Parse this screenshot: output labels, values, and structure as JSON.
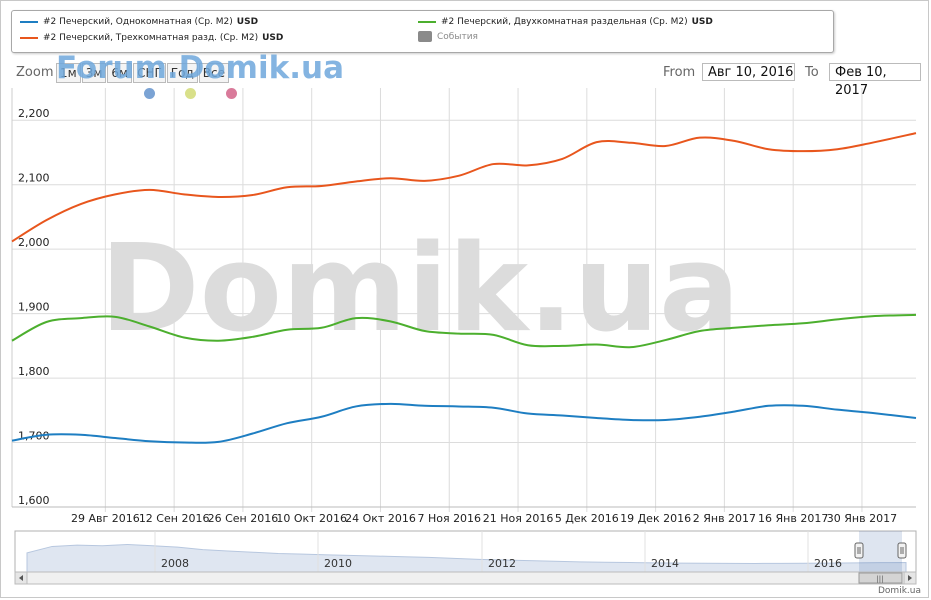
{
  "legend": {
    "items": [
      {
        "label": "#2 Печерский, Однокомнатная (Ср. М2)",
        "unit": "USD",
        "color": "#1e7ec2"
      },
      {
        "label": "#2 Печерский, Двухкомнатная раздельная (Ср. М2)",
        "unit": "USD",
        "color": "#4caf2e"
      },
      {
        "label": "#2 Печерский, Трехкомнатная разд. (Ср. М2)",
        "unit": "USD",
        "color": "#e8561d"
      }
    ],
    "events_label": "События"
  },
  "brand_watermark": "Forum.Domik.ua",
  "big_watermark": "Domik.ua",
  "footer_brand": "Domik.ua",
  "zoom": {
    "label": "Zoom",
    "buttons": [
      "1м",
      "3м",
      "6м",
      "СНГ",
      "Год",
      "Все"
    ]
  },
  "range": {
    "from_label": "From",
    "from_value": "Авг 10, 2016",
    "to_label": "To",
    "to_value": "Фев 10, 2017"
  },
  "event_dots": [
    {
      "color": "#7ba3d4"
    },
    {
      "color": "#d9e08a"
    },
    {
      "color": "#d97a9a"
    }
  ],
  "chart_data": {
    "type": "line",
    "x_start": "2016-08-10",
    "x_end": "2017-02-10",
    "ylim": [
      1600,
      2250
    ],
    "y_ticks": [
      1600,
      1700,
      1800,
      1900,
      2000,
      2100,
      2200
    ],
    "y_tick_labels": [
      "1,600",
      "1,700",
      "1,800",
      "1,900",
      "2,000",
      "2,100",
      "2,200"
    ],
    "x_ticks": [
      "2016-08-29",
      "2016-09-12",
      "2016-09-26",
      "2016-10-10",
      "2016-10-24",
      "2016-11-07",
      "2016-11-21",
      "2016-12-05",
      "2016-12-19",
      "2017-01-02",
      "2017-01-16",
      "2017-01-30"
    ],
    "x_tick_labels": [
      "29 Авг 2016",
      "12 Сен 2016",
      "26 Сен 2016",
      "10 Окт 2016",
      "24 Окт 2016",
      "7 Ноя 2016",
      "21 Ноя 2016",
      "5 Дек 2016",
      "19 Дек 2016",
      "2 Янв 2017",
      "16 Янв 2017",
      "30 Янв 2017"
    ],
    "series": [
      {
        "name": "#2 Печерский, Трехкомнатная разд. (Ср. М2)",
        "color": "#e8561d",
        "points": [
          [
            "2016-08-10",
            2012
          ],
          [
            "2016-08-17",
            2045
          ],
          [
            "2016-08-24",
            2070
          ],
          [
            "2016-08-31",
            2085
          ],
          [
            "2016-09-07",
            2092
          ],
          [
            "2016-09-14",
            2085
          ],
          [
            "2016-09-21",
            2081
          ],
          [
            "2016-09-28",
            2084
          ],
          [
            "2016-10-05",
            2096
          ],
          [
            "2016-10-12",
            2098
          ],
          [
            "2016-10-19",
            2105
          ],
          [
            "2016-10-26",
            2110
          ],
          [
            "2016-11-02",
            2106
          ],
          [
            "2016-11-09",
            2114
          ],
          [
            "2016-11-16",
            2132
          ],
          [
            "2016-11-23",
            2130
          ],
          [
            "2016-11-30",
            2140
          ],
          [
            "2016-12-07",
            2166
          ],
          [
            "2016-12-14",
            2165
          ],
          [
            "2016-12-21",
            2160
          ],
          [
            "2016-12-28",
            2173
          ],
          [
            "2017-01-04",
            2168
          ],
          [
            "2017-01-11",
            2155
          ],
          [
            "2017-01-18",
            2152
          ],
          [
            "2017-01-25",
            2155
          ],
          [
            "2017-02-01",
            2165
          ],
          [
            "2017-02-10",
            2180
          ]
        ]
      },
      {
        "name": "#2 Печерский, Двухкомнатная раздельная (Ср. М2)",
        "color": "#4caf2e",
        "points": [
          [
            "2016-08-10",
            1858
          ],
          [
            "2016-08-17",
            1887
          ],
          [
            "2016-08-24",
            1893
          ],
          [
            "2016-08-31",
            1895
          ],
          [
            "2016-09-07",
            1880
          ],
          [
            "2016-09-14",
            1863
          ],
          [
            "2016-09-21",
            1858
          ],
          [
            "2016-09-28",
            1864
          ],
          [
            "2016-10-05",
            1875
          ],
          [
            "2016-10-12",
            1878
          ],
          [
            "2016-10-19",
            1893
          ],
          [
            "2016-10-26",
            1888
          ],
          [
            "2016-11-02",
            1873
          ],
          [
            "2016-11-09",
            1869
          ],
          [
            "2016-11-16",
            1867
          ],
          [
            "2016-11-23",
            1851
          ],
          [
            "2016-11-30",
            1850
          ],
          [
            "2016-12-07",
            1852
          ],
          [
            "2016-12-14",
            1848
          ],
          [
            "2016-12-21",
            1859
          ],
          [
            "2016-12-28",
            1873
          ],
          [
            "2017-01-04",
            1878
          ],
          [
            "2017-01-11",
            1882
          ],
          [
            "2017-01-18",
            1885
          ],
          [
            "2017-01-25",
            1891
          ],
          [
            "2017-02-01",
            1896
          ],
          [
            "2017-02-10",
            1898
          ]
        ]
      },
      {
        "name": "#2 Печерский, Однокомнатная (Ср. М2)",
        "color": "#1e7ec2",
        "points": [
          [
            "2016-08-10",
            1703
          ],
          [
            "2016-08-17",
            1712
          ],
          [
            "2016-08-24",
            1712
          ],
          [
            "2016-08-31",
            1707
          ],
          [
            "2016-09-07",
            1702
          ],
          [
            "2016-09-14",
            1700
          ],
          [
            "2016-09-21",
            1701
          ],
          [
            "2016-09-28",
            1714
          ],
          [
            "2016-10-05",
            1730
          ],
          [
            "2016-10-12",
            1740
          ],
          [
            "2016-10-19",
            1756
          ],
          [
            "2016-10-26",
            1760
          ],
          [
            "2016-11-02",
            1757
          ],
          [
            "2016-11-09",
            1756
          ],
          [
            "2016-11-16",
            1754
          ],
          [
            "2016-11-23",
            1745
          ],
          [
            "2016-11-30",
            1742
          ],
          [
            "2016-12-07",
            1738
          ],
          [
            "2016-12-14",
            1735
          ],
          [
            "2016-12-21",
            1735
          ],
          [
            "2016-12-28",
            1740
          ],
          [
            "2017-01-04",
            1748
          ],
          [
            "2017-01-11",
            1757
          ],
          [
            "2017-01-18",
            1757
          ],
          [
            "2017-01-25",
            1751
          ],
          [
            "2017-02-01",
            1746
          ],
          [
            "2017-02-10",
            1738
          ]
        ]
      }
    ],
    "navigator": {
      "year_labels": [
        "2008",
        "2010",
        "2012",
        "2014",
        "2016"
      ],
      "series_values": [
        1900,
        2000,
        2020,
        2010,
        2030,
        2010,
        1990,
        1950,
        1930,
        1910,
        1890,
        1880,
        1870,
        1860,
        1850,
        1840,
        1830,
        1815,
        1800,
        1790,
        1780,
        1770,
        1760,
        1755,
        1750,
        1745,
        1742,
        1740,
        1738,
        1736,
        1738,
        1740,
        1742,
        1745,
        1748,
        1750
      ],
      "scrollbar_grip": "|||"
    },
    "grid": true
  },
  "colors": {
    "grid": "#dcdcdc",
    "axis_text": "#222"
  }
}
